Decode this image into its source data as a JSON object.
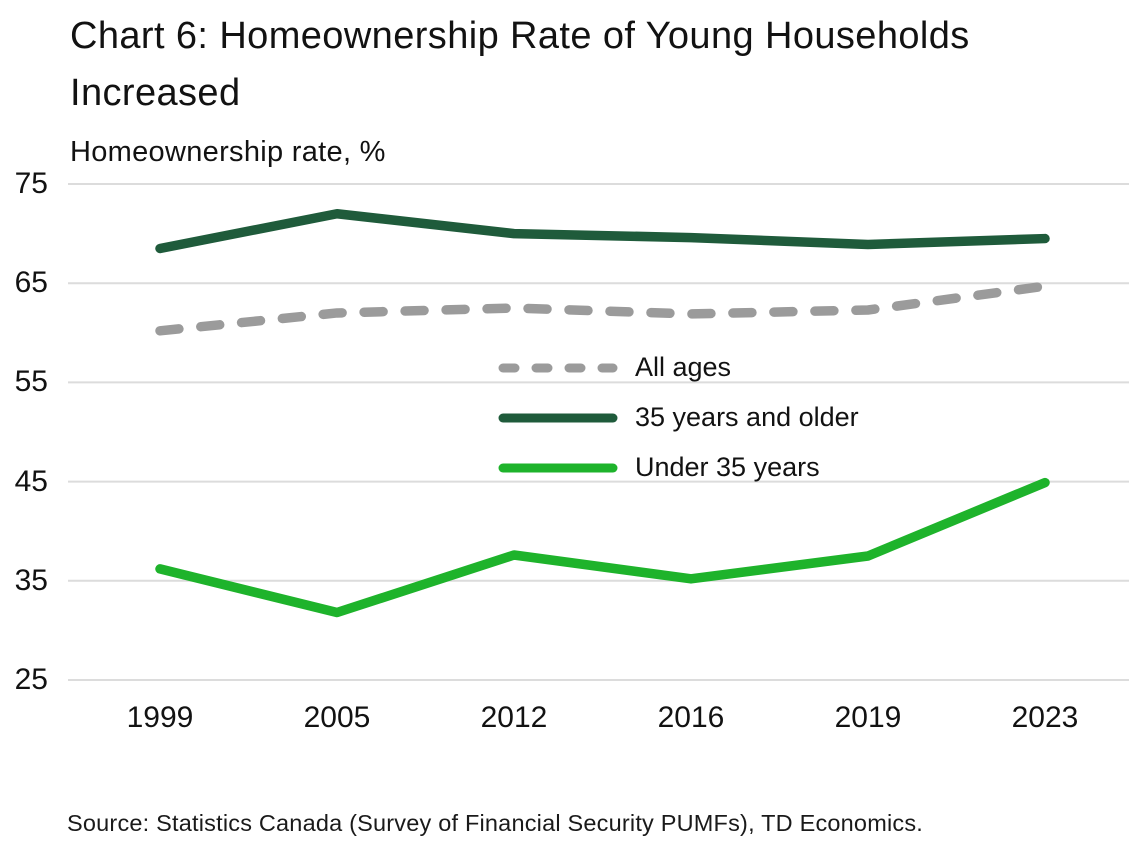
{
  "title": "Chart 6: Homeownership Rate of Young Households Increased",
  "source": "Source: Statistics Canada (Survey of Financial Security PUMFs), TD Economics.",
  "colors": {
    "dark_green": "#1f5b3b",
    "bright_green": "#1eb32b",
    "gray": "#9b9b9b",
    "gridline": "#dcdcdc",
    "text": "#121212"
  },
  "chart_data": {
    "type": "line",
    "title": "Chart 6: Homeownership Rate of Young Households Increased",
    "ylabel": "Homeownership rate, %",
    "xlabel": "",
    "categories": [
      "1999",
      "2005",
      "2012",
      "2016",
      "2019",
      "2023"
    ],
    "series": [
      {
        "name": "All ages",
        "style": "dashed",
        "color": "#9b9b9b",
        "values": [
          60.2,
          62.0,
          62.5,
          61.9,
          62.3,
          64.7
        ]
      },
      {
        "name": "35 years and older",
        "style": "solid",
        "color": "#1f5b3b",
        "values": [
          68.5,
          72.0,
          70.0,
          69.6,
          68.9,
          69.5
        ]
      },
      {
        "name": "Under 35 years",
        "style": "solid",
        "color": "#1eb32b",
        "values": [
          36.2,
          31.8,
          37.6,
          35.2,
          37.5,
          44.9
        ]
      }
    ],
    "ylim": [
      25,
      75
    ],
    "yticks": [
      75,
      65,
      55,
      45,
      35,
      25
    ],
    "grid": "horizontal",
    "legend_position": "inside-center"
  }
}
